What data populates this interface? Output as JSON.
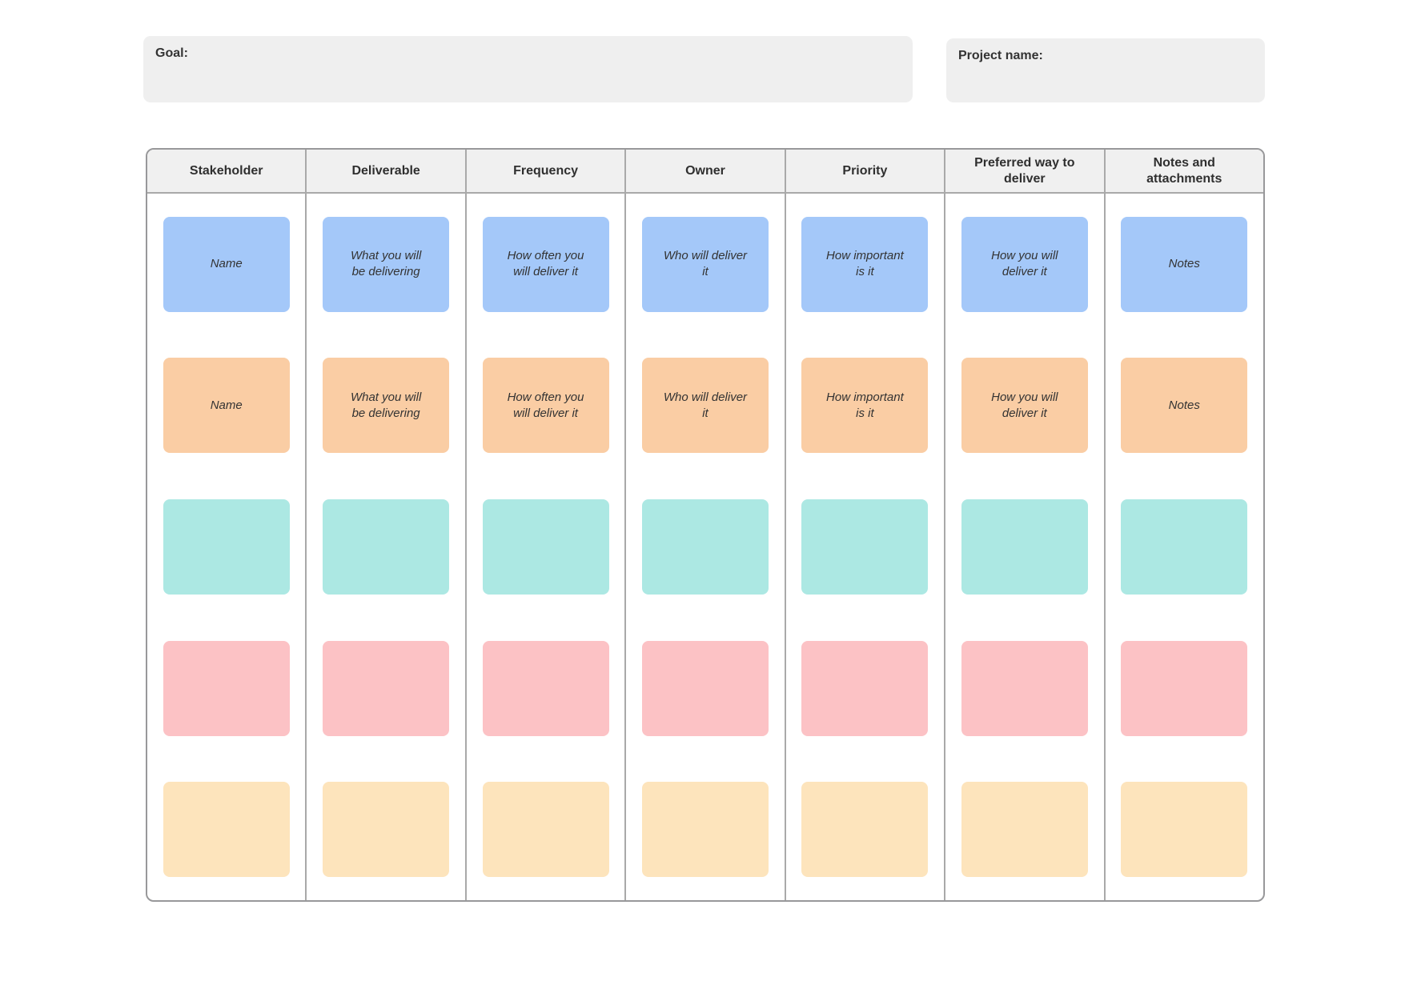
{
  "header_fields": {
    "goal_label": "Goal:",
    "project_label": "Project name:"
  },
  "table": {
    "columns": [
      "Stakeholder",
      "Deliverable",
      "Frequency",
      "Owner",
      "Priority",
      "Preferred way to deliver",
      "Notes and attachments"
    ],
    "rows": [
      {
        "name": "blue",
        "color": "#a4c8f9",
        "cells": [
          "Name",
          "What you will\nbe delivering",
          "How often you\nwill deliver it",
          "Who will deliver\nit",
          "How important\nis it",
          "How you will\ndeliver it",
          "Notes"
        ]
      },
      {
        "name": "peach",
        "color": "#facda4",
        "cells": [
          "Name",
          "What you will\nbe delivering",
          "How often you\nwill deliver it",
          "Who will deliver\nit",
          "How important\nis it",
          "How you will\ndeliver it",
          "Notes"
        ]
      },
      {
        "name": "teal",
        "color": "#ace8e3",
        "cells": [
          "",
          "",
          "",
          "",
          "",
          "",
          ""
        ]
      },
      {
        "name": "pink",
        "color": "#fcc2c5",
        "cells": [
          "",
          "",
          "",
          "",
          "",
          "",
          ""
        ]
      },
      {
        "name": "cream",
        "color": "#fde4bc",
        "cells": [
          "",
          "",
          "",
          "",
          "",
          "",
          ""
        ]
      }
    ]
  },
  "colors": {
    "page_bg": "#ffffff",
    "field_bg": "#efefef",
    "header_bg": "#f0f0f0",
    "table_border": "#98989a",
    "column_divider": "#a9a9a9",
    "text": "#333333",
    "row_blue": "#a4c8f9",
    "row_peach": "#facda4",
    "row_teal": "#ace8e3",
    "row_pink": "#fcc2c5",
    "row_cream": "#fde4bc"
  }
}
